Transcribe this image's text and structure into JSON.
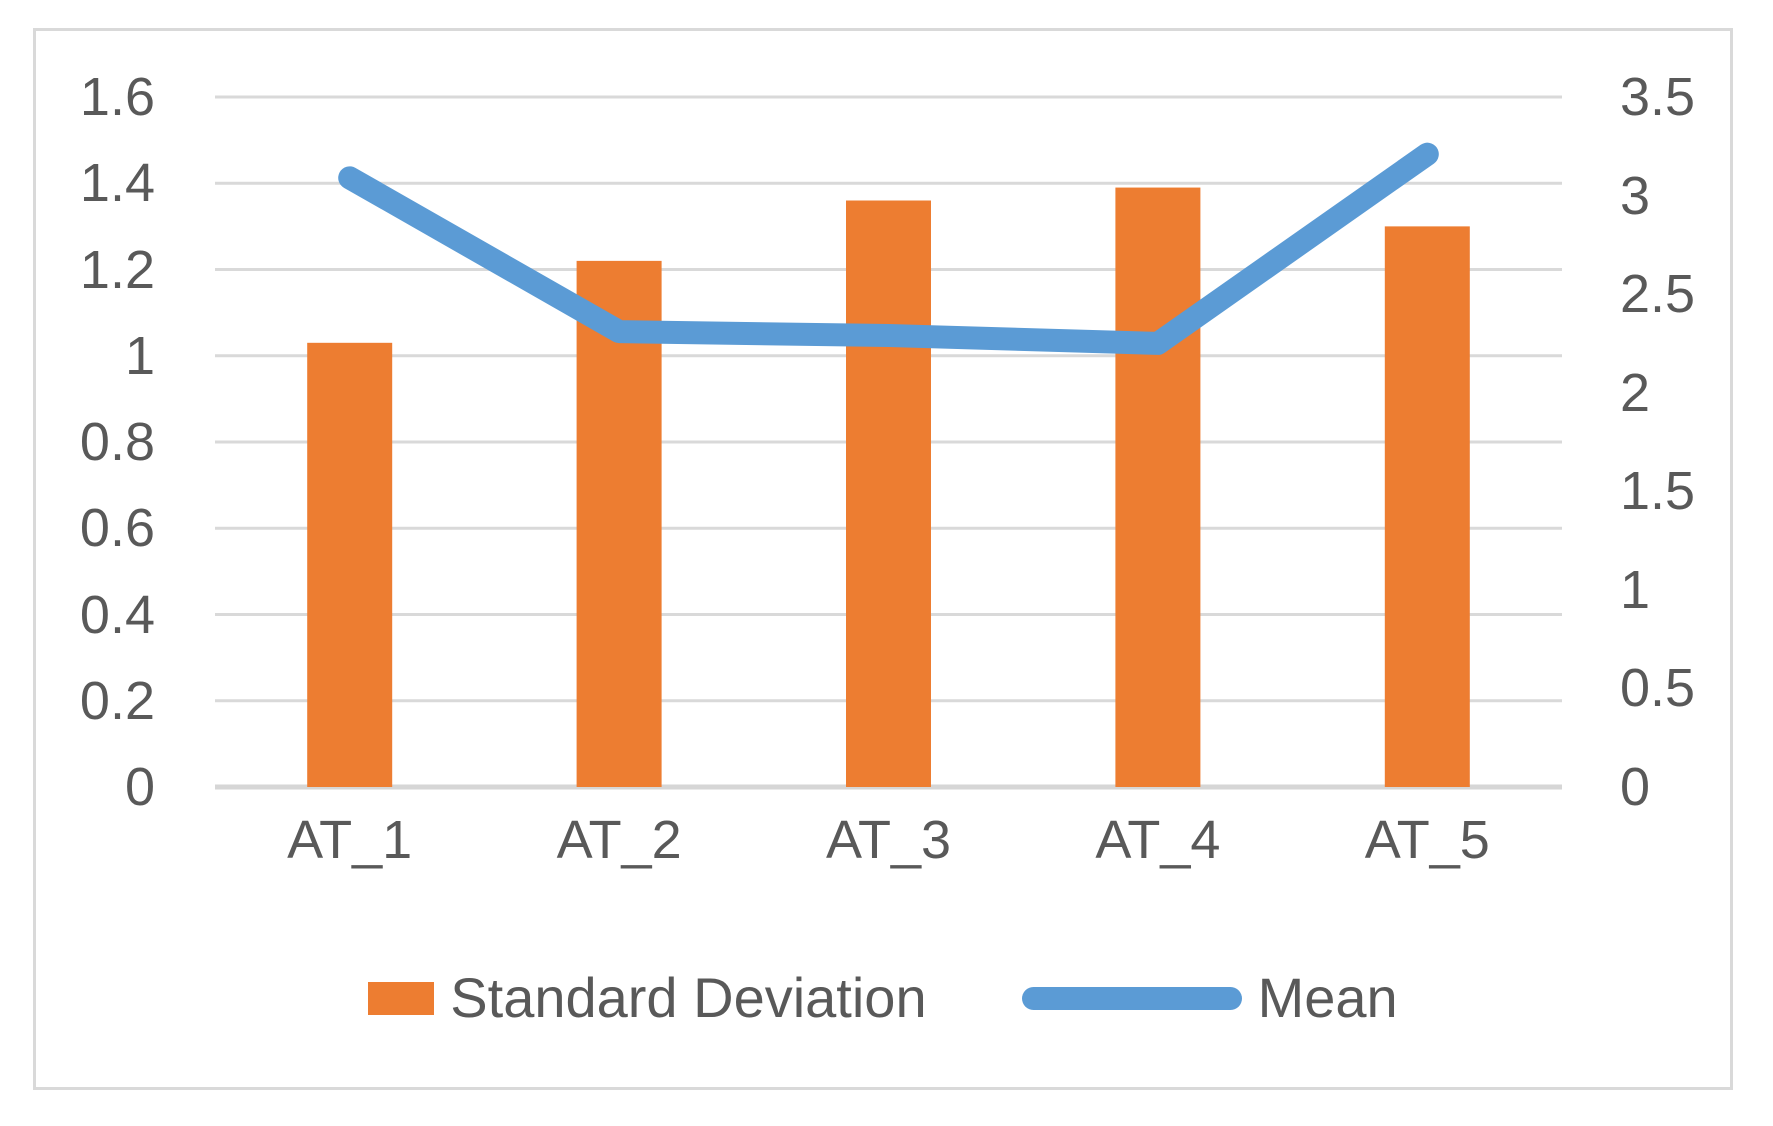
{
  "chart_data": {
    "type": "bar",
    "subtype": "combo-bar-line-dual-axis",
    "title": "",
    "categories": [
      "AT_1",
      "AT_2",
      "AT_3",
      "AT_4",
      "AT_5"
    ],
    "series": [
      {
        "name": "Standard Deviation",
        "type": "bar",
        "axis": "left",
        "color": "#ED7D31",
        "values": [
          1.03,
          1.22,
          1.36,
          1.39,
          1.3
        ]
      },
      {
        "name": "Mean",
        "type": "line",
        "axis": "right",
        "color": "#5B9BD5",
        "values": [
          3.09,
          2.31,
          2.29,
          2.25,
          3.21
        ]
      }
    ],
    "left_axis": {
      "min": 0,
      "max": 1.6,
      "step": 0.2,
      "tick_labels": [
        "1.6",
        "1.4",
        "1.2",
        "1",
        "0.8",
        "0.6",
        "0.4",
        "0.2",
        "0"
      ]
    },
    "right_axis": {
      "min": 0,
      "max": 3.5,
      "step": 0.5,
      "tick_labels": [
        "3.5",
        "3",
        "2.5",
        "2",
        "1.5",
        "1",
        "0.5",
        "0"
      ]
    },
    "grid": true,
    "legend_position": "bottom"
  },
  "legend": {
    "items": [
      {
        "label": "Standard Deviation",
        "color": "#ED7D31",
        "swatch": "bar"
      },
      {
        "label": "Mean",
        "color": "#5B9BD5",
        "swatch": "line"
      }
    ]
  },
  "colors": {
    "bar": "#ED7D31",
    "line": "#5B9BD5",
    "text": "#595959",
    "gridline": "#D9D9D9",
    "axis_line": "#D6D6D6",
    "frame_border": "#D9D9D9",
    "background": "#FFFFFF"
  }
}
